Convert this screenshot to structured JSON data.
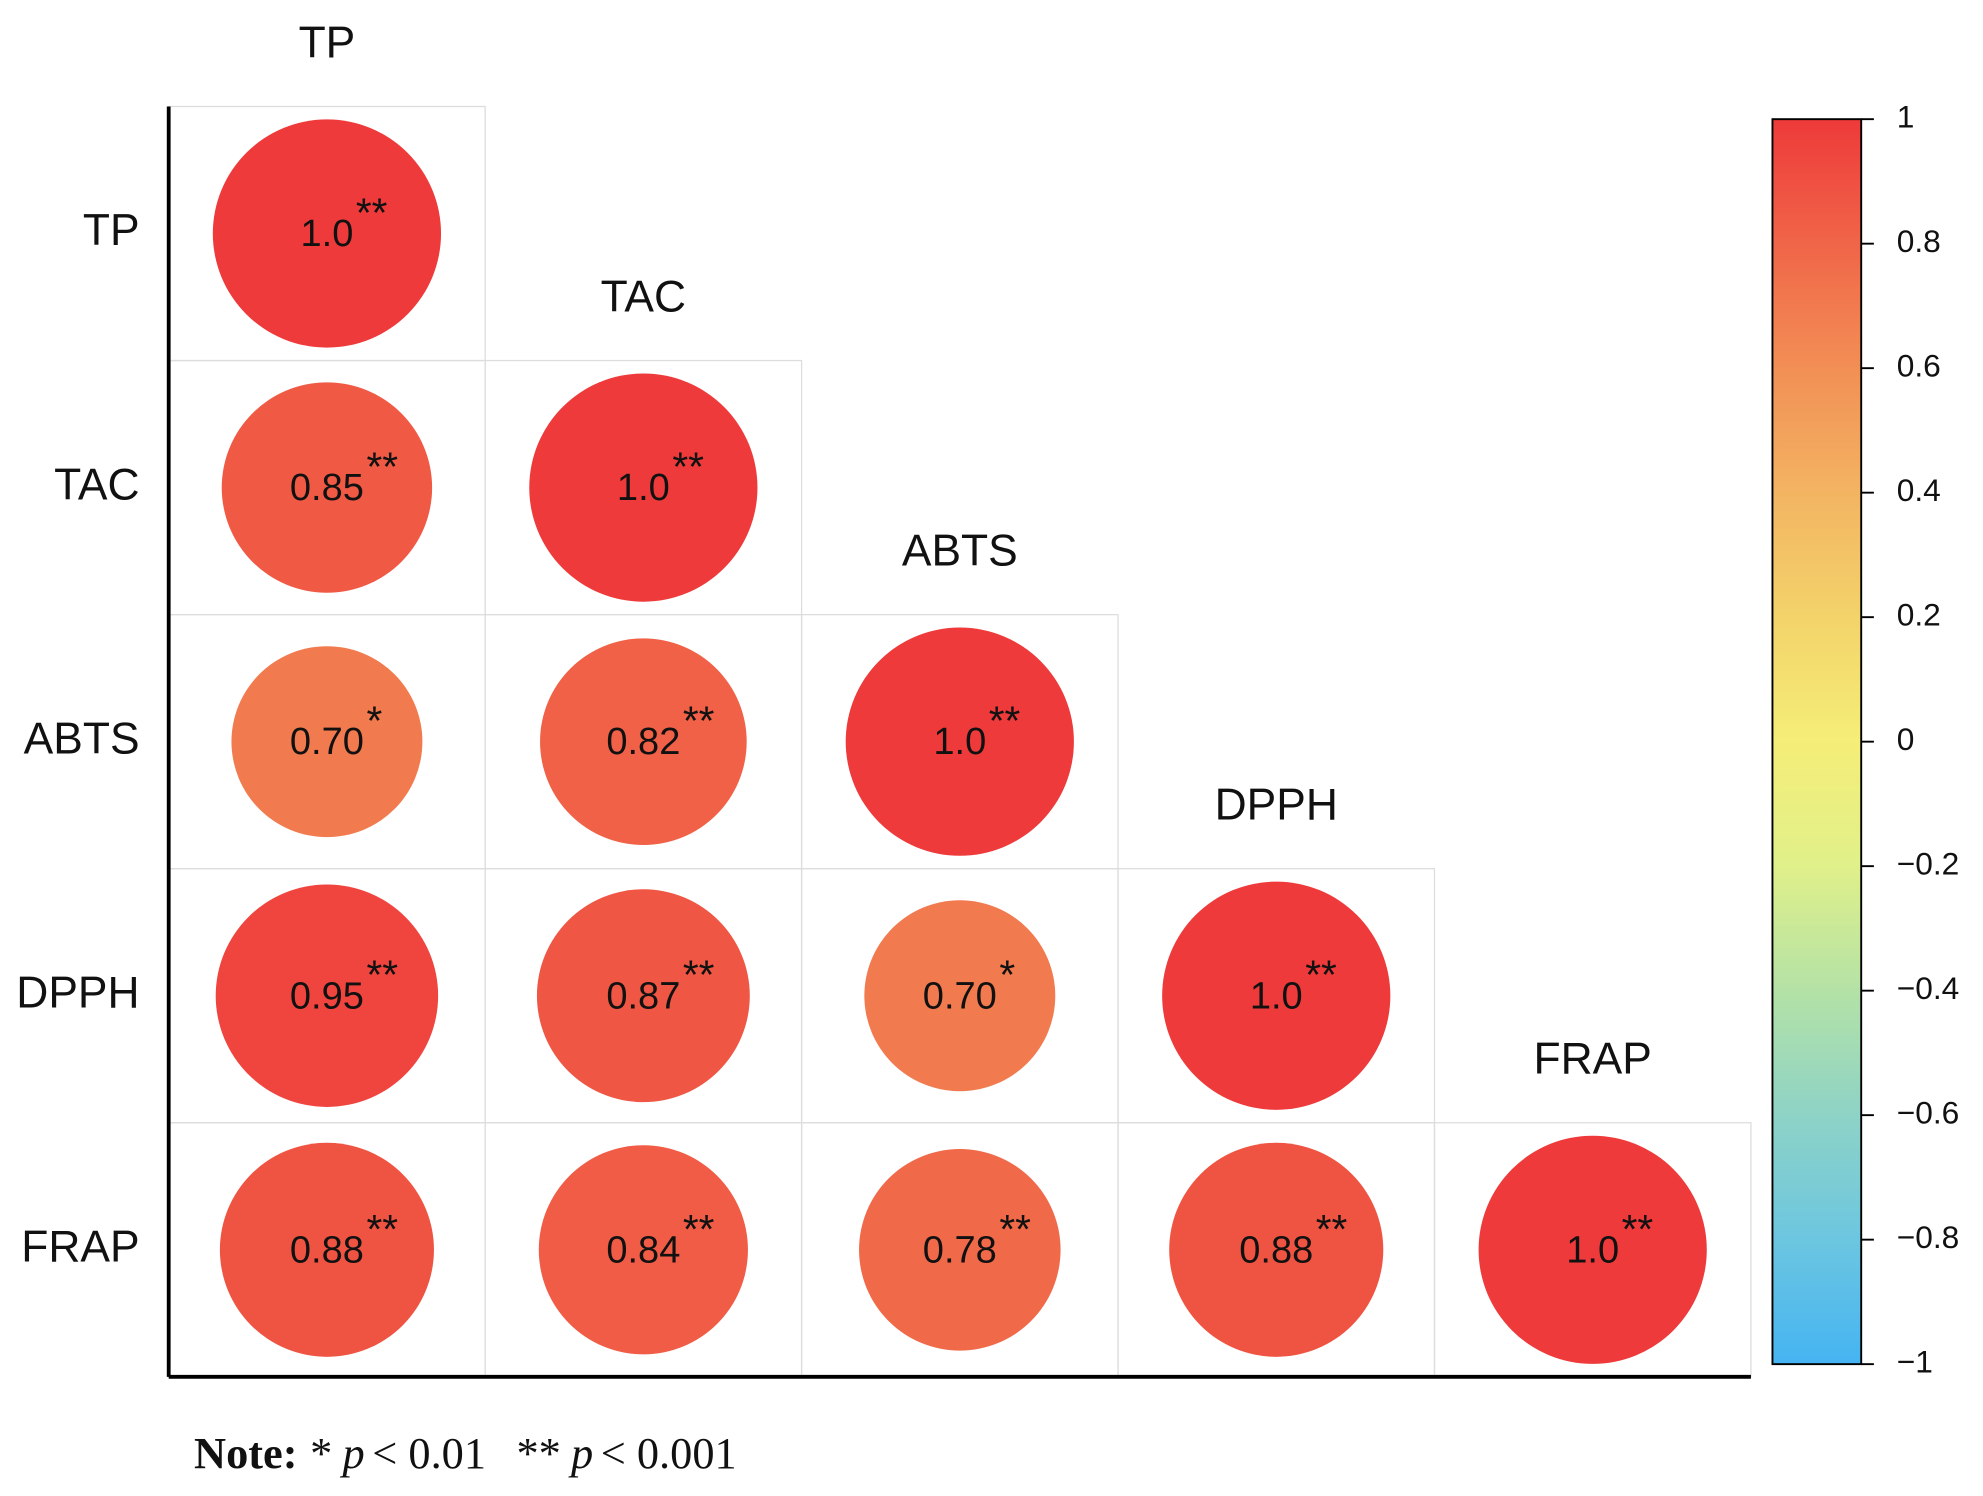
{
  "chart_data": {
    "type": "correlation",
    "variables": [
      "TP",
      "TAC",
      "ABTS",
      "DPPH",
      "FRAP"
    ],
    "matrix": [
      [
        1
      ],
      [
        0.85,
        1
      ],
      [
        0.7,
        0.82,
        1
      ],
      [
        0.95,
        0.87,
        0.7,
        1
      ],
      [
        0.88,
        0.84,
        0.78,
        0.88,
        1
      ]
    ],
    "value_labels": [
      [
        "1.0"
      ],
      [
        "0.85",
        "1.0"
      ],
      [
        "0.70",
        "0.82",
        "1.0"
      ],
      [
        "0.95",
        "0.87",
        "0.70",
        "1.0"
      ],
      [
        "0.88",
        "0.84",
        "0.78",
        "0.88",
        "1.0"
      ]
    ],
    "significance": [
      [
        "**"
      ],
      [
        "**",
        "**"
      ],
      [
        "*",
        "**",
        "**"
      ],
      [
        "**",
        "**",
        "*",
        "**"
      ],
      [
        "**",
        "**",
        "**",
        "**",
        "**"
      ]
    ],
    "clim": [
      -1,
      1
    ],
    "colorscale": [
      "#45b4f2",
      "#6cc6e0",
      "#8ed3c6",
      "#b4e2a6",
      "#e0f08a",
      "#f5ee78",
      "#f3d36a",
      "#f3b462",
      "#f28f55",
      "#f06548",
      "#ee3a3a"
    ],
    "colorbar_ticks": [
      1,
      0.8,
      0.6,
      0.4,
      0.2,
      0,
      {
        "value": -0.2,
        "label": "−0.2"
      },
      {
        "value": -0.4,
        "label": "−0.4"
      },
      {
        "value": -0.6,
        "label": "−0.6"
      },
      {
        "value": -0.8,
        "label": "−0.8"
      },
      {
        "value": -1,
        "label": "−1"
      }
    ],
    "note": {
      "label": "Note:",
      "items": [
        {
          "stars": "*",
          "symbol": "p",
          "text": "< 0.01"
        },
        {
          "stars": "**",
          "symbol": "p",
          "text": "< 0.001"
        }
      ]
    }
  }
}
